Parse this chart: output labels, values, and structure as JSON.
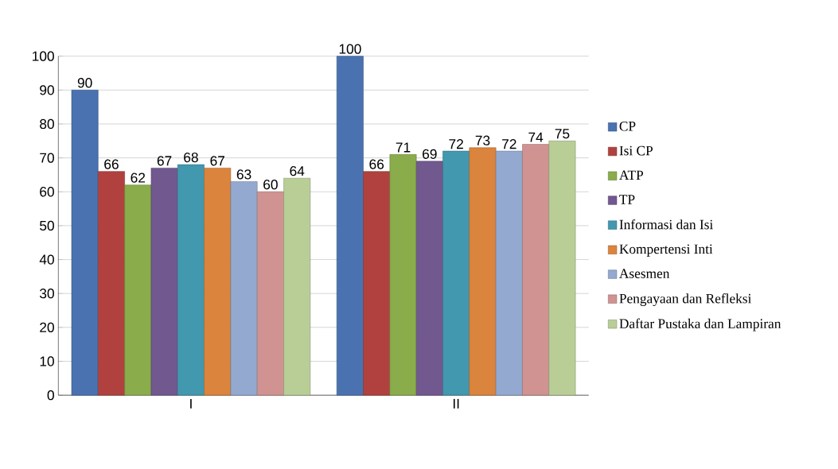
{
  "chart_data": {
    "type": "bar",
    "categories": [
      "I",
      "II"
    ],
    "series": [
      {
        "name": "CP",
        "color": "#4a72b0",
        "values": [
          90,
          100
        ]
      },
      {
        "name": "Isi CP",
        "color": "#b0413e",
        "values": [
          66,
          66
        ]
      },
      {
        "name": "ATP",
        "color": "#8aac4a",
        "values": [
          62,
          71
        ]
      },
      {
        "name": "TP",
        "color": "#71588f",
        "values": [
          67,
          69
        ]
      },
      {
        "name": "Informasi dan Isi",
        "color": "#4198af",
        "values": [
          68,
          72
        ]
      },
      {
        "name": "Kompertensi Inti",
        "color": "#db843d",
        "values": [
          67,
          73
        ]
      },
      {
        "name": "Asesmen",
        "color": "#93a9cf",
        "values": [
          63,
          72
        ]
      },
      {
        "name": "Pengayaan dan Refleksi",
        "color": "#d09392",
        "values": [
          60,
          74
        ]
      },
      {
        "name": "Daftar Pustaka dan Lampiran",
        "color": "#b9cd96",
        "values": [
          64,
          75
        ]
      }
    ],
    "ylim": [
      0,
      100
    ],
    "yticks": [
      0,
      10,
      20,
      30,
      40,
      50,
      60,
      70,
      80,
      90,
      100
    ],
    "grid": "y",
    "legend": "right",
    "data_labels": true
  }
}
